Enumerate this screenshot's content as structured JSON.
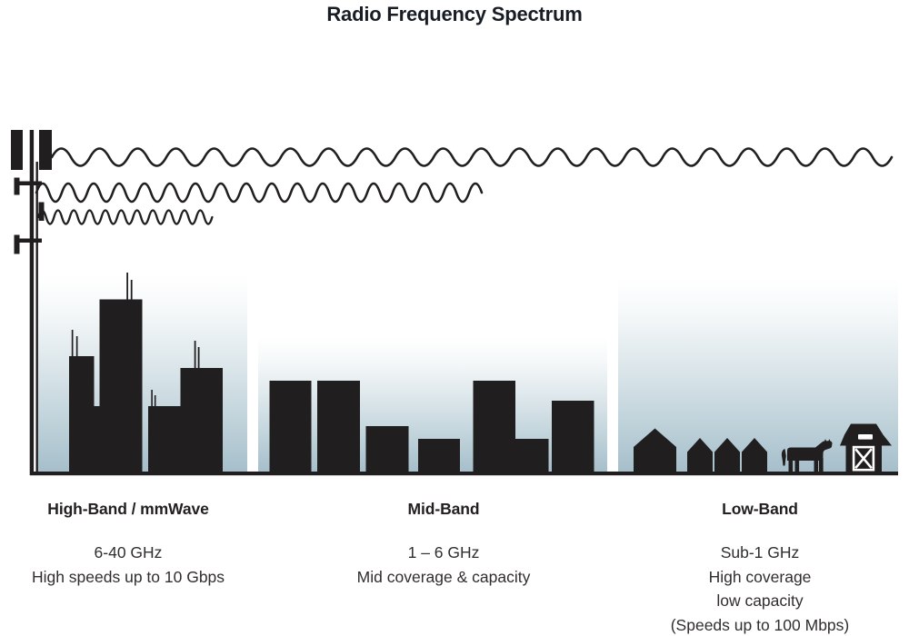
{
  "title": "Radio Frequency Spectrum",
  "bands": [
    {
      "id": "high-band",
      "heading": "High-Band / mmWave",
      "lines": [
        "6-40 GHz",
        "High speeds up to 10 Gbps"
      ],
      "scene_icon": "city-skyscrapers-icon",
      "wave_icon": "short-wavelength-wave"
    },
    {
      "id": "mid-band",
      "heading": "Mid-Band",
      "lines": [
        "1 – 6 GHz",
        "Mid coverage & capacity"
      ],
      "scene_icon": "mid-rise-buildings-icon",
      "wave_icon": "medium-wavelength-wave"
    },
    {
      "id": "low-band",
      "heading": "Low-Band",
      "lines": [
        "Sub-1 GHz",
        "High coverage",
        "low capacity",
        "(Speeds up to 100 Mbps)"
      ],
      "scene_icon": "houses-cow-barn-icon",
      "wave_icon": "long-wavelength-wave"
    }
  ],
  "icons": [
    "cell-tower-icon",
    "skyscraper-icon",
    "building-icon",
    "house-icon",
    "cow-icon",
    "barn-icon"
  ],
  "colors": {
    "ink": "#211e1f",
    "title_text": "#181d25",
    "body_text": "#322e2f",
    "sky_gradient_top": "#ffffff",
    "sky_gradient_bottom": "#a6bfcb"
  }
}
